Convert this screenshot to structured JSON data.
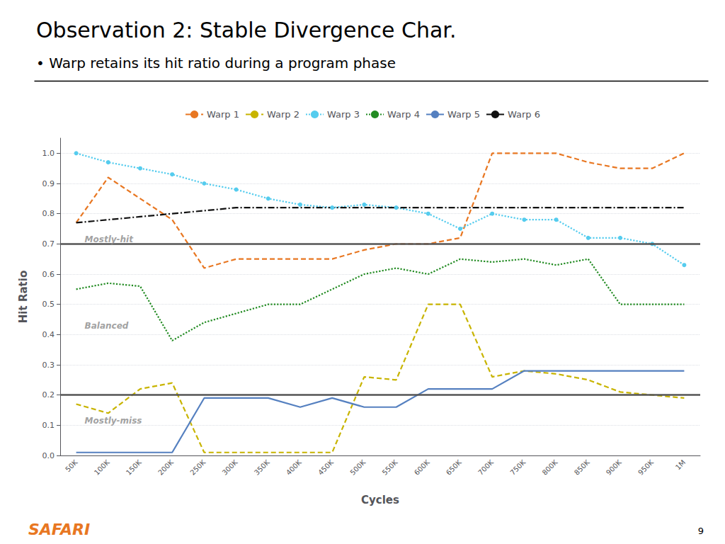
{
  "chart_data": {
    "type": "line",
    "title": "Observation 2: Stable Divergence Char.",
    "subtitle": "• Warp retains its hit ratio during a program phase",
    "xlabel": "Cycles",
    "ylabel": "Hit Ratio",
    "categories": [
      "50K",
      "100K",
      "150K",
      "200K",
      "250K",
      "300K",
      "350K",
      "400K",
      "450K",
      "500K",
      "550K",
      "600K",
      "650K",
      "700K",
      "750K",
      "800K",
      "850K",
      "900K",
      "950K",
      "1M"
    ],
    "series": [
      {
        "name": "Warp 1",
        "color": "#E87722",
        "line_style": "dashed",
        "values": [
          0.77,
          0.92,
          0.85,
          0.78,
          0.62,
          0.65,
          0.65,
          0.65,
          0.65,
          0.68,
          0.7,
          0.7,
          0.72,
          1.0,
          1.0,
          1.0,
          0.97,
          0.95,
          0.95,
          1.0
        ]
      },
      {
        "name": "Warp 2",
        "color": "#C8B400",
        "line_style": "dashed",
        "values": [
          0.17,
          0.14,
          0.22,
          0.24,
          0.01,
          0.01,
          0.01,
          0.01,
          0.01,
          0.26,
          0.25,
          0.5,
          0.5,
          0.26,
          0.28,
          0.27,
          0.25,
          0.21,
          0.2,
          0.19
        ]
      },
      {
        "name": "Warp 3",
        "color": "#55CCEE",
        "line_style": "dotted",
        "marker": "circle",
        "values": [
          1.0,
          0.97,
          0.95,
          0.93,
          0.9,
          0.88,
          0.85,
          0.83,
          0.82,
          0.83,
          0.82,
          0.8,
          0.75,
          0.8,
          0.78,
          0.78,
          0.72,
          0.72,
          0.7,
          0.63
        ]
      },
      {
        "name": "Warp 4",
        "color": "#228B22",
        "line_style": "dotted",
        "values": [
          0.55,
          0.57,
          0.56,
          0.38,
          0.44,
          0.47,
          0.5,
          0.5,
          0.55,
          0.6,
          0.62,
          0.6,
          0.65,
          0.64,
          0.65,
          0.63,
          0.65,
          0.5,
          0.5,
          0.5
        ]
      },
      {
        "name": "Warp 5",
        "color": "#5580C0",
        "line_style": "solid",
        "values": [
          0.01,
          0.01,
          0.01,
          0.01,
          0.19,
          0.19,
          0.19,
          0.16,
          0.19,
          0.16,
          0.16,
          0.22,
          0.22,
          0.22,
          0.28,
          0.28,
          0.28,
          0.28,
          0.28,
          0.28
        ]
      },
      {
        "name": "Warp 6",
        "color": "#111111",
        "line_style": "dashdot",
        "values": [
          0.77,
          0.78,
          0.79,
          0.8,
          0.81,
          0.82,
          0.82,
          0.82,
          0.82,
          0.82,
          0.82,
          0.82,
          0.82,
          0.82,
          0.82,
          0.82,
          0.82,
          0.82,
          0.82,
          0.82
        ]
      }
    ],
    "ylim": [
      0.0,
      1.05
    ],
    "yticks": [
      {
        "value": 0.0,
        "label": "0.0"
      },
      0.1,
      0.2,
      0.3,
      0.4,
      0.5,
      0.6,
      0.7,
      0.8,
      0.9,
      {
        "value": 1.0,
        "label": "1.0"
      }
    ],
    "hlines": [
      0.7,
      0.2
    ],
    "annotations": [
      {
        "text": "Mostly-hit",
        "y": 0.715
      },
      {
        "text": "Balanced",
        "y": 0.43
      },
      {
        "text": "Mostly-miss",
        "y": 0.115
      }
    ],
    "brand": "SAFARI",
    "brand_color": "#E87722",
    "page_number": "9",
    "grid": true,
    "legend": "top"
  }
}
